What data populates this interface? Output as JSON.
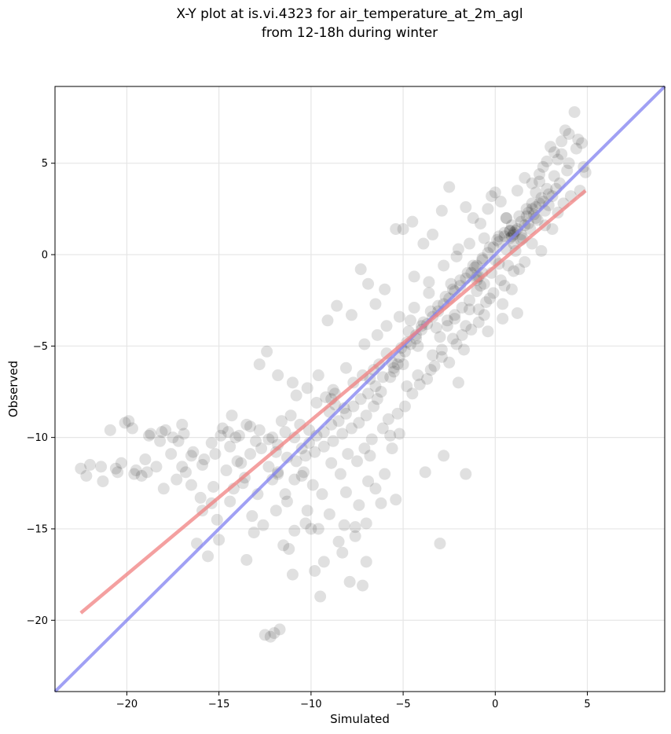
{
  "chart_data": {
    "type": "scatter",
    "title_line1": "X-Y plot at is.vi.4323 for air_temperature_at_2m_agl",
    "title_line2": "from 12-18h during winter",
    "xlabel": "Simulated",
    "ylabel": "Observed",
    "xlim": [
      -23.9,
      9.2
    ],
    "ylim": [
      -23.9,
      9.2
    ],
    "x_ticks": [
      -20,
      -15,
      -10,
      -5,
      0,
      5
    ],
    "y_ticks": [
      -20,
      -15,
      -10,
      -5,
      0,
      5
    ],
    "x_tick_labels": [
      "−20",
      "−15",
      "−10",
      "−5",
      "0",
      "5"
    ],
    "y_tick_labels": [
      "−20",
      "−15",
      "−10",
      "−5",
      "0",
      "5"
    ],
    "grid": true,
    "point_color": "#000000",
    "points": [
      [
        -22.5,
        -11.7
      ],
      [
        -22.2,
        -12.1
      ],
      [
        -22.0,
        -11.5
      ],
      [
        -21.3,
        -12.4
      ],
      [
        -20.9,
        -9.6
      ],
      [
        -20.6,
        -11.7
      ],
      [
        -20.3,
        -11.4
      ],
      [
        -20.1,
        -9.2
      ],
      [
        -19.9,
        -9.1
      ],
      [
        -19.7,
        -9.5
      ],
      [
        -19.5,
        -11.8
      ],
      [
        -19.2,
        -12.1
      ],
      [
        -19.0,
        -11.2
      ],
      [
        -18.7,
        -9.8
      ],
      [
        -18.4,
        -11.6
      ],
      [
        -18.1,
        -9.7
      ],
      [
        -17.9,
        -9.6
      ],
      [
        -17.5,
        -10.0
      ],
      [
        -17.2,
        -10.2
      ],
      [
        -17.0,
        -9.3
      ],
      [
        -16.8,
        -11.9
      ],
      [
        -16.5,
        -12.6
      ],
      [
        -16.2,
        -15.8
      ],
      [
        -15.9,
        -14.0
      ],
      [
        -15.6,
        -16.5
      ],
      [
        -15.4,
        -13.6
      ],
      [
        -15.1,
        -14.5
      ],
      [
        -14.8,
        -9.5
      ],
      [
        -14.5,
        -9.7
      ],
      [
        -14.3,
        -8.8
      ],
      [
        -14.0,
        -11.3
      ],
      [
        -13.7,
        -12.5
      ],
      [
        -13.5,
        -16.7
      ],
      [
        -13.2,
        -14.3
      ],
      [
        -13.0,
        -10.2
      ],
      [
        -12.8,
        -6.0
      ],
      [
        -12.5,
        -20.8
      ],
      [
        -12.2,
        -20.9
      ],
      [
        -12.0,
        -20.7
      ],
      [
        -11.7,
        -20.5
      ],
      [
        -11.5,
        -15.9
      ],
      [
        -11.2,
        -16.1
      ],
      [
        -11.0,
        -17.5
      ],
      [
        -10.8,
        -7.7
      ],
      [
        -10.5,
        -12.1
      ],
      [
        -10.3,
        -14.7
      ],
      [
        -10.0,
        -15.0
      ],
      [
        -9.8,
        -17.3
      ],
      [
        -9.5,
        -18.7
      ],
      [
        -9.3,
        -16.8
      ],
      [
        -9.0,
        -8.6
      ],
      [
        -8.8,
        -7.4
      ],
      [
        -8.5,
        -15.7
      ],
      [
        -8.3,
        -16.3
      ],
      [
        -8.1,
        -13.0
      ],
      [
        -7.9,
        -17.9
      ],
      [
        -7.6,
        -14.9
      ],
      [
        -7.4,
        -13.7
      ],
      [
        -7.2,
        -18.1
      ],
      [
        -7.0,
        -14.7
      ],
      [
        -6.8,
        -11.0
      ],
      [
        -6.6,
        -6.3
      ],
      [
        -6.4,
        -7.9
      ],
      [
        -6.2,
        -13.6
      ],
      [
        -6.0,
        -12.0
      ],
      [
        -5.8,
        -9.0
      ],
      [
        -5.6,
        -10.6
      ],
      [
        -5.4,
        -13.4
      ],
      [
        -5.2,
        -9.8
      ],
      [
        -5.0,
        -6.0
      ],
      [
        -4.8,
        -4.8
      ],
      [
        -4.6,
        -3.6
      ],
      [
        -4.4,
        -1.2
      ],
      [
        -4.2,
        -5.0
      ],
      [
        -4.0,
        -3.9
      ],
      [
        -3.8,
        -11.9
      ],
      [
        -3.6,
        -2.1
      ],
      [
        -3.4,
        -5.5
      ],
      [
        -3.2,
        -4.0
      ],
      [
        -3.0,
        -15.8
      ],
      [
        -2.8,
        -11.0
      ],
      [
        -2.6,
        -3.6
      ],
      [
        -2.4,
        -1.6
      ],
      [
        -2.2,
        -3.3
      ],
      [
        -2.0,
        -7.0
      ],
      [
        -1.8,
        -4.4
      ],
      [
        -1.6,
        -12.0
      ],
      [
        -1.4,
        -3.0
      ],
      [
        -1.2,
        -0.6
      ],
      [
        -1.0,
        -1.2
      ],
      [
        -0.8,
        -1.7
      ],
      [
        -0.6,
        -3.3
      ],
      [
        -0.4,
        -4.2
      ],
      [
        -0.2,
        3.2
      ],
      [
        0.0,
        -0.3
      ],
      [
        0.2,
        1.0
      ],
      [
        0.4,
        -3.5
      ],
      [
        0.6,
        2.0
      ],
      [
        0.8,
        1.3
      ],
      [
        1.0,
        -0.9
      ],
      [
        1.2,
        -3.2
      ],
      [
        1.4,
        0.8
      ],
      [
        1.6,
        1.6
      ],
      [
        1.8,
        2.3
      ],
      [
        2.0,
        2.8
      ],
      [
        2.2,
        3.4
      ],
      [
        2.4,
        4.0
      ],
      [
        2.6,
        4.8
      ],
      [
        2.8,
        3.6
      ],
      [
        3.0,
        5.9
      ],
      [
        3.2,
        4.3
      ],
      [
        3.4,
        5.2
      ],
      [
        3.6,
        6.2
      ],
      [
        3.8,
        6.8
      ],
      [
        4.0,
        5.0
      ],
      [
        4.3,
        7.8
      ],
      [
        4.5,
        6.3
      ],
      [
        4.7,
        6.1
      ],
      [
        4.9,
        4.5
      ],
      [
        -16.9,
        -9.8
      ],
      [
        -16.4,
        -10.8
      ],
      [
        -15.8,
        -11.2
      ],
      [
        -15.2,
        -10.9
      ],
      [
        -14.6,
        -11.8
      ],
      [
        -13.9,
        -9.9
      ],
      [
        -13.3,
        -9.4
      ],
      [
        -12.7,
        -10.6
      ],
      [
        -12.1,
        -10.0
      ],
      [
        -11.6,
        -9.1
      ],
      [
        -11.1,
        -8.8
      ],
      [
        -10.6,
        -9.3
      ],
      [
        -10.1,
        -9.6
      ],
      [
        -9.7,
        -8.1
      ],
      [
        -9.2,
        -7.8
      ],
      [
        -8.7,
        -7.6
      ],
      [
        -8.2,
        -8.4
      ],
      [
        -7.7,
        -7.0
      ],
      [
        -7.2,
        -6.6
      ],
      [
        -6.8,
        -6.8
      ],
      [
        -6.3,
        -6.0
      ],
      [
        -5.9,
        -5.4
      ],
      [
        -5.5,
        -6.2
      ],
      [
        -5.1,
        -5.1
      ],
      [
        -4.7,
        -4.2
      ],
      [
        -4.3,
        -4.6
      ],
      [
        -3.9,
        -3.7
      ],
      [
        -3.5,
        -3.1
      ],
      [
        -3.1,
        -2.8
      ],
      [
        -2.7,
        -2.3
      ],
      [
        -2.3,
        -1.9
      ],
      [
        -1.9,
        -1.4
      ],
      [
        -1.5,
        -1.0
      ],
      [
        -1.1,
        -0.7
      ],
      [
        -0.7,
        -0.2
      ],
      [
        -0.3,
        0.4
      ],
      [
        0.1,
        0.8
      ],
      [
        0.5,
        1.2
      ],
      [
        0.9,
        1.6
      ],
      [
        1.3,
        2.1
      ],
      [
        1.7,
        2.5
      ],
      [
        2.1,
        2.2
      ],
      [
        2.5,
        3.1
      ],
      [
        2.9,
        3.3
      ],
      [
        -14.2,
        -12.8
      ],
      [
        -13.6,
        -12.2
      ],
      [
        -12.9,
        -13.1
      ],
      [
        -12.3,
        -11.6
      ],
      [
        -11.8,
        -12.0
      ],
      [
        -11.3,
        -13.5
      ],
      [
        -10.9,
        -12.3
      ],
      [
        -10.4,
        -11.9
      ],
      [
        -9.9,
        -12.6
      ],
      [
        -9.4,
        -13.1
      ],
      [
        -8.9,
        -11.4
      ],
      [
        -8.4,
        -12.0
      ],
      [
        -8.0,
        -10.9
      ],
      [
        -7.5,
        -11.3
      ],
      [
        -7.1,
        -10.6
      ],
      [
        -6.7,
        -10.1
      ],
      [
        -6.1,
        -9.5
      ],
      [
        -5.7,
        -9.9
      ],
      [
        -5.3,
        -8.7
      ],
      [
        -4.9,
        -8.3
      ],
      [
        -4.5,
        -7.6
      ],
      [
        -4.1,
        -7.1
      ],
      [
        -3.7,
        -6.8
      ],
      [
        -3.3,
        -6.1
      ],
      [
        -2.9,
        -5.6
      ],
      [
        -2.5,
        -5.9
      ],
      [
        -2.1,
        -4.9
      ],
      [
        -1.7,
        -5.2
      ],
      [
        -1.3,
        -4.1
      ],
      [
        -0.9,
        -3.7
      ],
      [
        -0.5,
        -2.6
      ],
      [
        -0.1,
        -2.1
      ],
      [
        0.3,
        -1.4
      ],
      [
        0.7,
        -0.6
      ],
      [
        1.1,
        0.2
      ],
      [
        1.5,
        0.9
      ],
      [
        1.9,
        1.4
      ],
      [
        2.3,
        1.9
      ],
      [
        2.7,
        2.4
      ],
      [
        3.1,
        3.2
      ],
      [
        3.5,
        3.9
      ],
      [
        3.9,
        4.6
      ],
      [
        -9.1,
        -3.6
      ],
      [
        -8.6,
        -2.8
      ],
      [
        -7.8,
        -3.3
      ],
      [
        -7.3,
        -0.8
      ],
      [
        -6.9,
        -1.6
      ],
      [
        -6.5,
        -2.7
      ],
      [
        -6.0,
        -1.9
      ],
      [
        -5.4,
        1.4
      ],
      [
        -5.0,
        1.4
      ],
      [
        -4.5,
        1.8
      ],
      [
        -3.9,
        0.6
      ],
      [
        -3.4,
        1.1
      ],
      [
        -2.9,
        2.4
      ],
      [
        -2.5,
        3.7
      ],
      [
        -2.0,
        0.3
      ],
      [
        -1.6,
        2.6
      ],
      [
        -1.2,
        2.0
      ],
      [
        -0.8,
        1.7
      ],
      [
        -0.4,
        2.5
      ],
      [
        0.0,
        3.4
      ],
      [
        0.3,
        2.9
      ],
      [
        0.6,
        2.0
      ],
      [
        1.2,
        3.5
      ],
      [
        1.6,
        4.2
      ],
      [
        2.0,
        3.9
      ],
      [
        2.4,
        4.4
      ],
      [
        2.8,
        5.1
      ],
      [
        3.2,
        5.6
      ],
      [
        3.6,
        5.5
      ],
      [
        4.0,
        6.6
      ],
      [
        4.4,
        5.8
      ],
      [
        4.8,
        4.8
      ],
      [
        1.0,
        1.1
      ],
      [
        1.1,
        1.3
      ],
      [
        0.9,
        1.0
      ],
      [
        1.2,
        1.4
      ],
      [
        0.8,
        0.9
      ],
      [
        1.0,
        1.2
      ],
      [
        2.2,
        2.6
      ],
      [
        2.4,
        2.8
      ],
      [
        2.0,
        2.5
      ],
      [
        -0.9,
        -1.2
      ],
      [
        -1.0,
        -1.4
      ],
      [
        -0.7,
        -1.0
      ],
      [
        -5.5,
        -6.4
      ],
      [
        -5.3,
        -6.0
      ],
      [
        -5.7,
        -6.7
      ],
      [
        -8.7,
        -8.2
      ],
      [
        -8.9,
        -7.9
      ],
      [
        -11.8,
        -11.9
      ],
      [
        -12.1,
        -12.3
      ],
      [
        -13.5,
        -9.3
      ],
      [
        -14.1,
        -10.0
      ],
      [
        -15.3,
        -12.7
      ],
      [
        -16.0,
        -13.3
      ],
      [
        -17.3,
        -12.3
      ],
      [
        -18.0,
        -12.8
      ],
      [
        -18.9,
        -11.9
      ],
      [
        -19.6,
        -12.0
      ],
      [
        -20.5,
        -11.9
      ],
      [
        -21.4,
        -11.6
      ],
      [
        -15.0,
        -15.6
      ],
      [
        -14.4,
        -13.5
      ],
      [
        -13.1,
        -15.2
      ],
      [
        -12.6,
        -14.8
      ],
      [
        -11.9,
        -14.0
      ],
      [
        -11.4,
        -13.1
      ],
      [
        -10.9,
        -15.1
      ],
      [
        -10.2,
        -14.0
      ],
      [
        -9.6,
        -15.0
      ],
      [
        -9.0,
        -14.2
      ],
      [
        -8.2,
        -14.8
      ],
      [
        -7.6,
        -15.4
      ],
      [
        -7.0,
        -16.8
      ],
      [
        -6.5,
        -12.8
      ],
      [
        -6.9,
        -12.4
      ],
      [
        -12.4,
        -5.3
      ],
      [
        -11.8,
        -6.6
      ],
      [
        -11.0,
        -7.0
      ],
      [
        -10.2,
        -7.3
      ],
      [
        -9.6,
        -6.6
      ],
      [
        -8.1,
        -6.2
      ],
      [
        -7.1,
        -4.9
      ],
      [
        -6.4,
        -4.4
      ],
      [
        -5.9,
        -3.9
      ],
      [
        -5.2,
        -3.4
      ],
      [
        -4.4,
        -2.9
      ],
      [
        -3.6,
        -1.5
      ],
      [
        -2.8,
        -0.6
      ],
      [
        -2.1,
        -0.1
      ],
      [
        -1.4,
        0.6
      ],
      [
        -0.6,
        0.9
      ],
      [
        0.4,
        -2.7
      ],
      [
        0.9,
        -1.9
      ],
      [
        1.6,
        -0.4
      ],
      [
        2.5,
        0.2
      ],
      [
        3.1,
        1.4
      ],
      [
        3.7,
        2.8
      ],
      [
        4.6,
        3.5
      ],
      [
        -5.6,
        -5.9
      ],
      [
        -5.2,
        -5.6
      ],
      [
        -4.9,
        -5.3
      ],
      [
        -4.6,
        -4.9
      ],
      [
        -4.3,
        -4.4
      ],
      [
        -4.0,
        -4.1
      ],
      [
        -3.7,
        -3.8
      ],
      [
        -3.4,
        -3.4
      ],
      [
        -3.1,
        -3.1
      ],
      [
        -2.8,
        -2.7
      ],
      [
        -2.5,
        -2.4
      ],
      [
        -2.2,
        -2.0
      ],
      [
        -1.9,
        -1.7
      ],
      [
        -1.6,
        -1.3
      ],
      [
        -1.3,
        -1.0
      ],
      [
        -1.0,
        -0.6
      ],
      [
        -0.7,
        -0.3
      ],
      [
        -0.4,
        0.1
      ],
      [
        -0.1,
        0.4
      ],
      [
        0.2,
        0.7
      ],
      [
        0.5,
        1.0
      ],
      [
        0.8,
        1.3
      ],
      [
        1.4,
        1.8
      ],
      [
        1.7,
        2.1
      ],
      [
        2.6,
        2.9
      ],
      [
        2.9,
        2.7
      ],
      [
        3.3,
        3.6
      ],
      [
        -6.2,
        -7.5
      ],
      [
        -6.6,
        -8.3
      ],
      [
        -7.0,
        -8.8
      ],
      [
        -7.4,
        -9.2
      ],
      [
        -7.8,
        -9.5
      ],
      [
        -8.3,
        -9.8
      ],
      [
        -8.8,
        -10.2
      ],
      [
        -9.3,
        -10.5
      ],
      [
        -9.8,
        -10.8
      ],
      [
        -10.3,
        -11.0
      ],
      [
        -10.8,
        -11.3
      ],
      [
        -11.3,
        -11.1
      ],
      [
        -11.8,
        -10.4
      ],
      [
        -12.3,
        -10.1
      ],
      [
        -12.8,
        -9.6
      ],
      [
        -13.3,
        -10.9
      ],
      [
        -13.8,
        -11.4
      ],
      [
        -14.4,
        -10.5
      ],
      [
        -14.9,
        -9.9
      ],
      [
        -15.4,
        -10.3
      ],
      [
        -15.9,
        -11.5
      ],
      [
        -16.5,
        -11.0
      ],
      [
        -17.0,
        -11.6
      ],
      [
        -17.6,
        -10.9
      ],
      [
        -18.2,
        -10.2
      ],
      [
        -18.8,
        -9.9
      ],
      [
        -6.1,
        -6.7
      ],
      [
        -6.5,
        -7.2
      ],
      [
        -6.9,
        -7.6
      ],
      [
        -7.3,
        -7.9
      ],
      [
        -7.7,
        -8.3
      ],
      [
        -8.1,
        -8.7
      ],
      [
        -8.5,
        -9.1
      ],
      [
        -8.9,
        -9.3
      ],
      [
        -9.3,
        -9.7
      ],
      [
        -9.7,
        -9.9
      ],
      [
        -10.1,
        -10.3
      ],
      [
        -10.5,
        -10.6
      ],
      [
        -10.9,
        -10.0
      ],
      [
        -11.4,
        -9.7
      ],
      [
        -11.9,
        -10.8
      ],
      [
        -3.0,
        -4.5
      ],
      [
        -2.6,
        -3.9
      ],
      [
        -2.2,
        -3.5
      ],
      [
        -1.8,
        -2.9
      ],
      [
        -1.4,
        -2.5
      ],
      [
        -1.0,
        -2.0
      ],
      [
        -0.6,
        -1.6
      ],
      [
        -0.2,
        -1.0
      ],
      [
        0.2,
        -0.5
      ],
      [
        0.6,
        0.3
      ],
      [
        1.0,
        0.6
      ],
      [
        1.4,
        1.1
      ],
      [
        1.8,
        1.7
      ],
      [
        2.2,
        2.0
      ],
      [
        -4.8,
        -7.2
      ],
      [
        -4.2,
        -6.6
      ],
      [
        -3.5,
        -6.3
      ],
      [
        -2.9,
        -5.2
      ],
      [
        -2.3,
        -4.6
      ],
      [
        -1.6,
        -3.9
      ],
      [
        -0.9,
        -3.0
      ],
      [
        -0.3,
        -2.4
      ],
      [
        0.5,
        -1.7
      ],
      [
        1.3,
        -0.8
      ],
      [
        2.0,
        0.6
      ],
      [
        2.7,
        1.6
      ],
      [
        3.4,
        2.3
      ],
      [
        4.1,
        3.2
      ]
    ],
    "fit_line": {
      "color": "#f08080",
      "x": [
        -22.5,
        4.9
      ],
      "y": [
        -19.6,
        3.5
      ]
    },
    "identity_line": {
      "color": "#8080f0",
      "x": [
        -23.9,
        9.2
      ],
      "y": [
        -23.9,
        9.2
      ]
    }
  }
}
